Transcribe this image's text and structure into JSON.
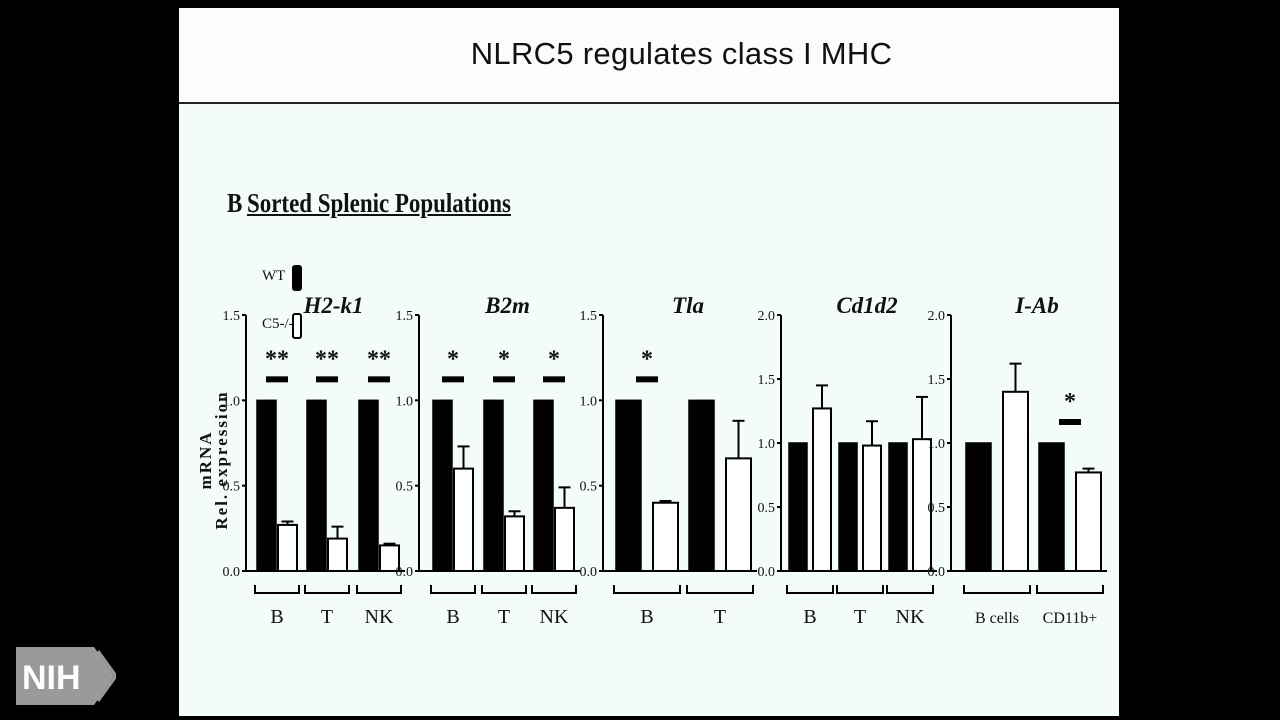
{
  "slide": {
    "title": "NLRC5 regulates class I MHC",
    "panel_letter": "B",
    "panel_label": "Sorted Splenic Populations",
    "y_axis_label_line1": "mRNA",
    "y_axis_label_line2": "Rel. expression"
  },
  "logo": {
    "text": "NIH"
  },
  "legend": [
    {
      "label": "WT",
      "fill": "#000000"
    },
    {
      "label": "C5-/-",
      "fill": "#ffffff"
    }
  ],
  "colors": {
    "wt": "#000000",
    "ko": "#ffffff",
    "stroke": "#000000"
  },
  "chart_data": [
    {
      "type": "bar",
      "title": "H2-k1",
      "ylim": [
        0,
        1.5
      ],
      "yticks": [
        "0.0",
        "0.5",
        "1.0",
        "1.5"
      ],
      "categories": [
        "B",
        "T",
        "NK"
      ],
      "series": [
        {
          "name": "WT",
          "values": [
            1.0,
            1.0,
            1.0
          ]
        },
        {
          "name": "C5-/-",
          "values": [
            0.27,
            0.19,
            0.15
          ],
          "errors": [
            0.02,
            0.07,
            0.01
          ]
        }
      ],
      "significance": [
        "**",
        "**",
        "**"
      ]
    },
    {
      "type": "bar",
      "title": "B2m",
      "ylim": [
        0,
        1.5
      ],
      "yticks": [
        "0.0",
        "0.5",
        "1.0",
        "1.5"
      ],
      "categories": [
        "B",
        "T",
        "NK"
      ],
      "series": [
        {
          "name": "WT",
          "values": [
            1.0,
            1.0,
            1.0
          ]
        },
        {
          "name": "C5-/-",
          "values": [
            0.6,
            0.32,
            0.37
          ],
          "errors": [
            0.13,
            0.03,
            0.12
          ]
        }
      ],
      "significance": [
        "*",
        "*",
        "*"
      ]
    },
    {
      "type": "bar",
      "title": "Tla",
      "ylim": [
        0,
        1.5
      ],
      "yticks": [
        "0.0",
        "0.5",
        "1.0",
        "1.5"
      ],
      "categories": [
        "B",
        "T"
      ],
      "series": [
        {
          "name": "WT",
          "values": [
            1.0,
            1.0
          ]
        },
        {
          "name": "C5-/-",
          "values": [
            0.4,
            0.66
          ],
          "errors": [
            0.01,
            0.22
          ]
        }
      ],
      "significance": [
        "*",
        ""
      ]
    },
    {
      "type": "bar",
      "title": "Cd1d2",
      "ylim": [
        0,
        2.0
      ],
      "yticks": [
        "0.0",
        "0.5",
        "1.0",
        "1.5",
        "2.0"
      ],
      "categories": [
        "B",
        "T",
        "NK"
      ],
      "series": [
        {
          "name": "WT",
          "values": [
            1.0,
            1.0,
            1.0
          ]
        },
        {
          "name": "C5-/-",
          "values": [
            1.27,
            0.98,
            1.03
          ],
          "errors": [
            0.18,
            0.19,
            0.33
          ]
        }
      ],
      "significance": [
        "",
        "",
        ""
      ]
    },
    {
      "type": "bar",
      "title": "I-Ab",
      "ylim": [
        0,
        2.0
      ],
      "yticks": [
        "0.0",
        "0.5",
        "1.0",
        "1.5",
        "2.0"
      ],
      "categories": [
        "B cells",
        "CD11b+"
      ],
      "series": [
        {
          "name": "WT",
          "values": [
            1.0,
            1.0
          ]
        },
        {
          "name": "C5-/-",
          "values": [
            1.4,
            0.77
          ],
          "errors": [
            0.22,
            0.03
          ]
        }
      ],
      "significance": [
        "",
        "*"
      ]
    }
  ]
}
